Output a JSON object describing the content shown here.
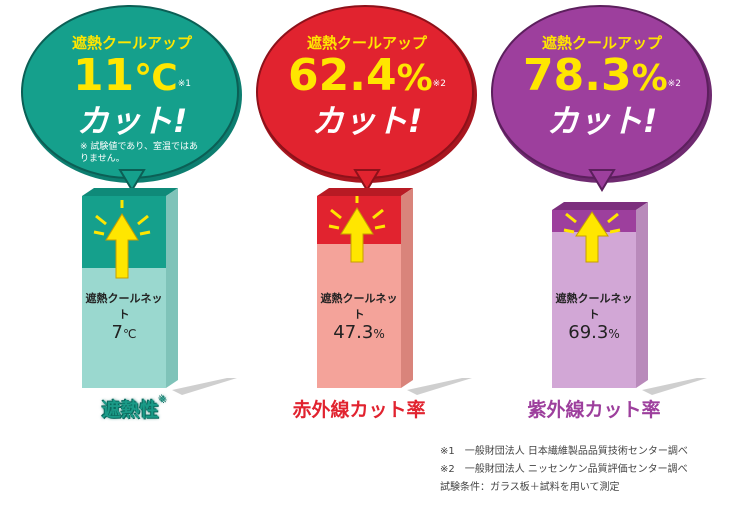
{
  "chart_data": {
    "type": "bar",
    "categories": [
      "遮熱性",
      "赤外線カット率",
      "紫外線カット率"
    ],
    "series": [
      {
        "name": "遮熱クールネット",
        "values": [
          7,
          47.3,
          69.3
        ],
        "units": [
          "℃",
          "%",
          "%"
        ]
      },
      {
        "name": "遮熱クールアップ",
        "values": [
          11,
          62.4,
          78.3
        ],
        "units": [
          "℃",
          "%",
          "%"
        ]
      }
    ]
  },
  "colors": {
    "teal": "#15a08c",
    "teal_light": "#9ad8cf",
    "red": "#e1232f",
    "red_light": "#f4a39a",
    "purple": "#9d3f9d",
    "purple_light": "#d2a7d6",
    "yellow": "#ffe600"
  },
  "panels": [
    {
      "bubble_title": "遮熱クールアップ",
      "bubble_value": "11",
      "bubble_unit": "℃",
      "bubble_ref": "※1",
      "bubble_cut": "カット!",
      "bubble_note": "※ 試験値であり、室温ではありません。",
      "box_name": "遮熱クールネット",
      "box_value": "7",
      "box_unit": "℃",
      "caption": "遮熱性",
      "caption_ref": "※"
    },
    {
      "bubble_title": "遮熱クールアップ",
      "bubble_value": "62.4",
      "bubble_unit": "%",
      "bubble_ref": "※2",
      "bubble_cut": "カット!",
      "box_name": "遮熱クールネット",
      "box_value": "47.3",
      "box_unit": "%",
      "caption": "赤外線カット率"
    },
    {
      "bubble_title": "遮熱クールアップ",
      "bubble_value": "78.3",
      "bubble_unit": "%",
      "bubble_ref": "※2",
      "bubble_cut": "カット!",
      "box_name": "遮熱クールネット",
      "box_value": "69.3",
      "box_unit": "%",
      "caption": "紫外線カット率"
    }
  ],
  "footnotes": [
    "※1　一般財団法人 日本繊維製品品質技術センター調べ",
    "※2　一般財団法人 ニッセンケン品質評価センター調べ",
    "試験条件：ガラス板＋試料を用いて測定"
  ]
}
